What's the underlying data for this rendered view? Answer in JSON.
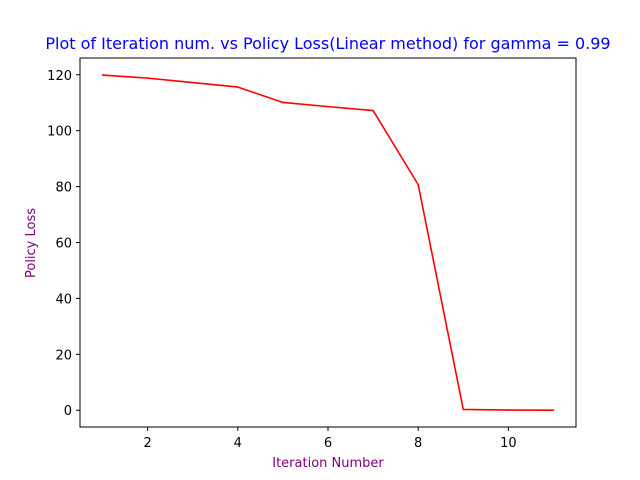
{
  "chart_data": {
    "type": "line",
    "title": "Plot of Iteration num. vs Policy Loss(Linear method) for gamma = 0.99",
    "xlabel": "Iteration Number",
    "ylabel": "Policy Loss",
    "xlim": [
      0.5,
      11.5
    ],
    "ylim": [
      -6,
      126
    ],
    "x_ticks": [
      2,
      4,
      6,
      8,
      10
    ],
    "y_ticks": [
      0,
      20,
      40,
      60,
      80,
      100,
      120
    ],
    "grid": false,
    "series": [
      {
        "x": [
          1,
          2,
          3,
          4,
          5,
          6,
          7,
          8,
          9,
          10,
          11
        ],
        "values": [
          119.9,
          118.8,
          117.2,
          115.6,
          110.1,
          108.6,
          107.2,
          80.7,
          0.3,
          0.05,
          0.0
        ],
        "color": "#ff0000"
      }
    ],
    "title_color": "#0000ff",
    "axis_label_color": "#800080"
  }
}
